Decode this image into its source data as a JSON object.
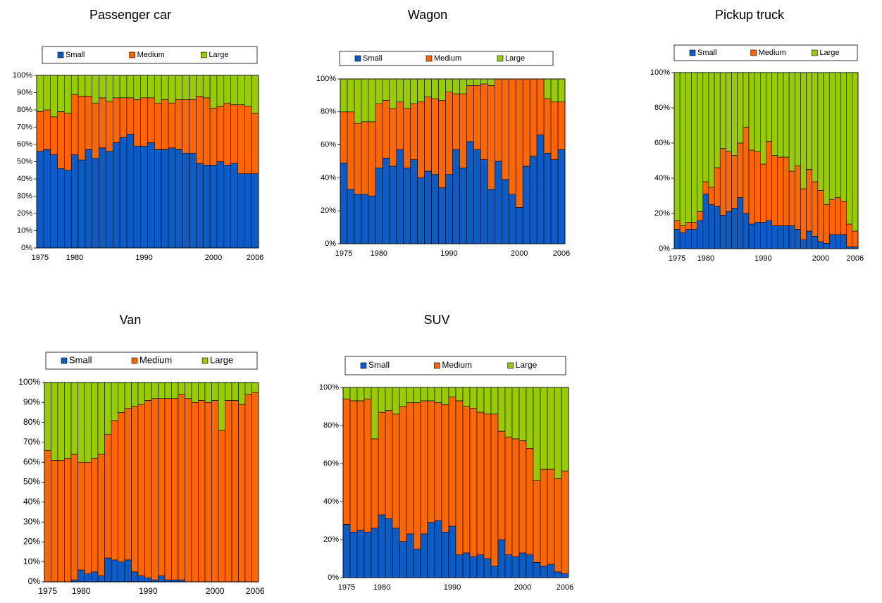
{
  "chart_data": [
    {
      "type": "bar",
      "stacked": true,
      "title": "Passenger car",
      "categories": [
        1975,
        null,
        null,
        null,
        null,
        1980,
        null,
        null,
        null,
        null,
        null,
        null,
        null,
        null,
        null,
        1990,
        null,
        null,
        null,
        null,
        null,
        null,
        null,
        null,
        null,
        2000,
        null,
        null,
        null,
        null,
        null,
        2006
      ],
      "series": [
        {
          "name": "Small",
          "color": "#0a5cc8",
          "values": [
            56,
            57,
            54,
            46,
            45,
            54,
            51,
            57,
            52,
            58,
            56,
            61,
            64,
            66,
            59,
            59,
            61,
            57,
            57,
            58,
            57,
            55,
            55,
            49,
            48,
            48,
            50,
            48,
            49,
            43,
            43,
            43
          ]
        },
        {
          "name": "Medium",
          "color": "#ff6600",
          "values": [
            23,
            23,
            22,
            33,
            33,
            35,
            37,
            31,
            32,
            29,
            29,
            26,
            23,
            21,
            27,
            28,
            26,
            27,
            29,
            26,
            29,
            31,
            31,
            39,
            39,
            33,
            32,
            36,
            34,
            40,
            39,
            35
          ]
        },
        {
          "name": "Large",
          "color": "#99cc00",
          "values": [
            21,
            20,
            24,
            21,
            22,
            11,
            12,
            12,
            16,
            13,
            15,
            13,
            13,
            13,
            14,
            13,
            13,
            16,
            14,
            16,
            14,
            14,
            14,
            12,
            13,
            19,
            18,
            16,
            17,
            17,
            18,
            22
          ]
        }
      ],
      "ylim": [
        0,
        100
      ],
      "yticks": [
        {
          "value": 0,
          "label": "0%"
        },
        {
          "value": 10,
          "label": "10%"
        },
        {
          "value": 20,
          "label": "20%"
        },
        {
          "value": 30,
          "label": "30%"
        },
        {
          "value": 40,
          "label": "40%"
        },
        {
          "value": 50,
          "label": "50%"
        },
        {
          "value": 60,
          "label": "60%"
        },
        {
          "value": 70,
          "label": "70%"
        },
        {
          "value": 80,
          "label": "80%"
        },
        {
          "value": 90,
          "label": "90%"
        },
        {
          "value": 100,
          "label": "100%"
        }
      ]
    },
    {
      "type": "bar",
      "stacked": true,
      "title": "Wagon",
      "categories": [
        1975,
        null,
        null,
        null,
        null,
        1980,
        null,
        null,
        null,
        null,
        null,
        null,
        null,
        null,
        null,
        1990,
        null,
        null,
        null,
        null,
        null,
        null,
        null,
        null,
        null,
        2000,
        null,
        null,
        null,
        null,
        null,
        2006
      ],
      "series": [
        {
          "name": "Small",
          "color": "#0a5cc8",
          "values": [
            49,
            33,
            30,
            30,
            29,
            46,
            52,
            47,
            57,
            46,
            51,
            40,
            44,
            42,
            34,
            42,
            57,
            46,
            62,
            57,
            51,
            33,
            50,
            39,
            30,
            22,
            47,
            53,
            66,
            55,
            51,
            57
          ]
        },
        {
          "name": "Medium",
          "color": "#ff6600",
          "values": [
            31,
            47,
            43,
            44,
            45,
            39,
            35,
            35,
            29,
            36,
            34,
            46,
            45,
            46,
            53,
            50,
            34,
            45,
            34,
            39,
            46,
            63,
            50,
            61,
            70,
            78,
            53,
            47,
            34,
            33,
            35,
            29
          ]
        },
        {
          "name": "Large",
          "color": "#99cc00",
          "values": [
            20,
            20,
            27,
            26,
            26,
            15,
            13,
            18,
            14,
            18,
            15,
            14,
            11,
            12,
            13,
            8,
            9,
            9,
            4,
            4,
            3,
            4,
            0,
            0,
            0,
            0,
            0,
            0,
            0,
            12,
            14,
            14
          ]
        }
      ],
      "ylim": [
        0,
        100
      ],
      "yticks": [
        {
          "value": 0,
          "label": "0%"
        },
        {
          "value": 20,
          "label": "20%"
        },
        {
          "value": 40,
          "label": "40%"
        },
        {
          "value": 60,
          "label": "60%"
        },
        {
          "value": 80,
          "label": "80%"
        },
        {
          "value": 100,
          "label": "100%"
        }
      ]
    },
    {
      "type": "bar",
      "stacked": true,
      "title": "Pickup truck",
      "categories": [
        1975,
        null,
        null,
        null,
        null,
        1980,
        null,
        null,
        null,
        null,
        null,
        null,
        null,
        null,
        null,
        1990,
        null,
        null,
        null,
        null,
        null,
        null,
        null,
        null,
        null,
        2000,
        null,
        null,
        null,
        null,
        null,
        2006
      ],
      "series": [
        {
          "name": "Small",
          "color": "#0a5cc8",
          "values": [
            11,
            9,
            11,
            11,
            16,
            31,
            25,
            24,
            19,
            21,
            23,
            29,
            20,
            14,
            15,
            15,
            16,
            13,
            13,
            13,
            13,
            11,
            5,
            10,
            7,
            4,
            3,
            8,
            8,
            8,
            1,
            1
          ]
        },
        {
          "name": "Medium",
          "color": "#ff6600",
          "values": [
            5,
            4,
            4,
            4,
            5,
            7,
            10,
            22,
            38,
            34,
            30,
            31,
            49,
            42,
            40,
            33,
            45,
            40,
            39,
            39,
            31,
            36,
            29,
            35,
            31,
            29,
            22,
            20,
            21,
            19,
            13,
            9
          ]
        },
        {
          "name": "Large",
          "color": "#99cc00",
          "values": [
            84,
            87,
            85,
            85,
            79,
            62,
            65,
            54,
            43,
            45,
            47,
            40,
            31,
            44,
            45,
            52,
            39,
            47,
            48,
            48,
            56,
            53,
            66,
            55,
            62,
            67,
            75,
            72,
            71,
            73,
            86,
            90
          ]
        }
      ],
      "ylim": [
        0,
        100
      ],
      "yticks": [
        {
          "value": 0,
          "label": "0%"
        },
        {
          "value": 20,
          "label": "20%"
        },
        {
          "value": 40,
          "label": "40%"
        },
        {
          "value": 60,
          "label": "60%"
        },
        {
          "value": 80,
          "label": "80%"
        },
        {
          "value": 100,
          "label": "100%"
        }
      ]
    },
    {
      "type": "bar",
      "stacked": true,
      "title": "Van",
      "categories": [
        1975,
        null,
        null,
        null,
        null,
        1980,
        null,
        null,
        null,
        null,
        null,
        null,
        null,
        null,
        null,
        1990,
        null,
        null,
        null,
        null,
        null,
        null,
        null,
        null,
        null,
        2000,
        null,
        null,
        null,
        null,
        null,
        2006
      ],
      "series": [
        {
          "name": "Small",
          "color": "#0a5cc8",
          "values": [
            0,
            0,
            0,
            0,
            1,
            6,
            4,
            5,
            3,
            12,
            11,
            10,
            11,
            5,
            3,
            2,
            1,
            3,
            1,
            1,
            1,
            0,
            0,
            0,
            0,
            0,
            0,
            0,
            0,
            0,
            0,
            0
          ]
        },
        {
          "name": "Medium",
          "color": "#ff6600",
          "values": [
            66,
            61,
            61,
            62,
            63,
            54,
            56,
            57,
            61,
            62,
            70,
            75,
            76,
            83,
            86,
            89,
            91,
            89,
            91,
            91,
            93,
            92,
            90,
            91,
            90,
            91,
            76,
            91,
            91,
            89,
            94,
            95
          ]
        },
        {
          "name": "Large",
          "color": "#99cc00",
          "values": [
            34,
            39,
            39,
            38,
            36,
            40,
            40,
            38,
            36,
            26,
            19,
            15,
            13,
            12,
            11,
            9,
            8,
            8,
            8,
            8,
            6,
            8,
            10,
            9,
            10,
            9,
            24,
            9,
            9,
            11,
            6,
            5
          ]
        }
      ],
      "ylim": [
        0,
        100
      ],
      "yticks": [
        {
          "value": 0,
          "label": "0%"
        },
        {
          "value": 10,
          "label": "10%"
        },
        {
          "value": 20,
          "label": "20%"
        },
        {
          "value": 30,
          "label": "30%"
        },
        {
          "value": 40,
          "label": "40%"
        },
        {
          "value": 50,
          "label": "50%"
        },
        {
          "value": 60,
          "label": "60%"
        },
        {
          "value": 70,
          "label": "70%"
        },
        {
          "value": 80,
          "label": "80%"
        },
        {
          "value": 90,
          "label": "90%"
        },
        {
          "value": 100,
          "label": "100%"
        }
      ]
    },
    {
      "type": "bar",
      "stacked": true,
      "title": "SUV",
      "categories": [
        1975,
        null,
        null,
        null,
        null,
        1980,
        null,
        null,
        null,
        null,
        null,
        null,
        null,
        null,
        null,
        1990,
        null,
        null,
        null,
        null,
        null,
        null,
        null,
        null,
        null,
        2000,
        null,
        null,
        null,
        null,
        null,
        2006
      ],
      "series": [
        {
          "name": "Small",
          "color": "#0a5cc8",
          "values": [
            28,
            24,
            25,
            24,
            26,
            33,
            31,
            26,
            19,
            23,
            15,
            23,
            29,
            30,
            24,
            27,
            12,
            13,
            11,
            12,
            10,
            6,
            20,
            12,
            11,
            13,
            12,
            8,
            6,
            7,
            3,
            2
          ]
        },
        {
          "name": "Medium",
          "color": "#ff6600",
          "values": [
            66,
            69,
            68,
            70,
            47,
            54,
            57,
            60,
            71,
            69,
            77,
            70,
            64,
            62,
            67,
            68,
            81,
            77,
            78,
            75,
            76,
            80,
            57,
            62,
            62,
            59,
            56,
            43,
            51,
            50,
            49,
            54
          ]
        },
        {
          "name": "Large",
          "color": "#99cc00",
          "values": [
            6,
            7,
            7,
            6,
            27,
            13,
            12,
            14,
            10,
            8,
            8,
            7,
            7,
            8,
            9,
            5,
            7,
            10,
            11,
            13,
            14,
            14,
            23,
            26,
            27,
            28,
            32,
            49,
            43,
            43,
            48,
            44
          ]
        }
      ],
      "ylim": [
        0,
        100
      ],
      "yticks": [
        {
          "value": 0,
          "label": "0%"
        },
        {
          "value": 20,
          "label": "20%"
        },
        {
          "value": 40,
          "label": "40%"
        },
        {
          "value": 60,
          "label": "60%"
        },
        {
          "value": 80,
          "label": "80%"
        },
        {
          "value": 100,
          "label": "100%"
        }
      ]
    }
  ]
}
